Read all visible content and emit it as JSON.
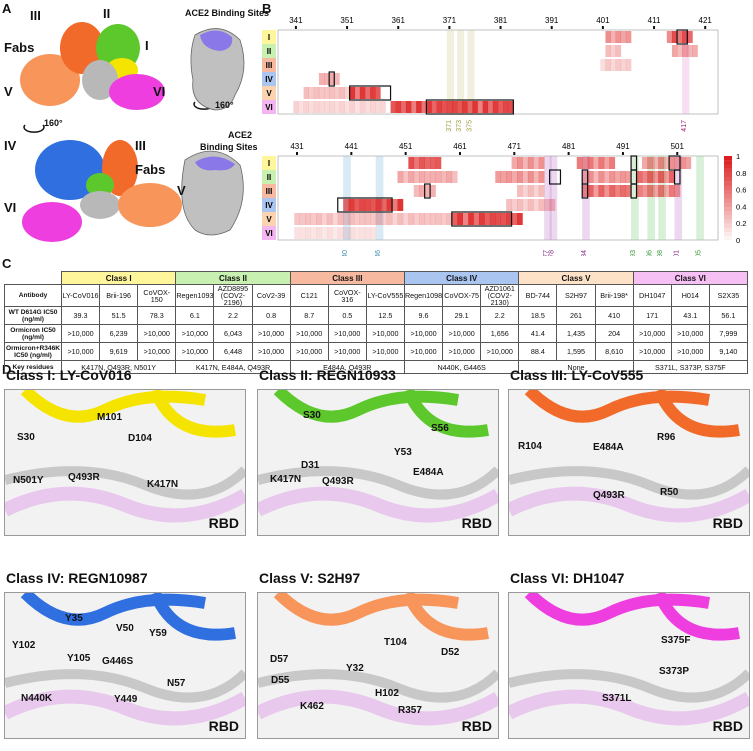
{
  "panel_labels": {
    "a": "A",
    "b": "B",
    "c": "C",
    "d": "D"
  },
  "panel_a": {
    "fab_romans": [
      "I",
      "II",
      "III",
      "IV",
      "V",
      "VI"
    ],
    "fabs_label": "Fabs",
    "ace2_label": "ACE2 Binding Sites",
    "ace2_label2": "ACE2",
    "ace2_label3": "Binding Sites",
    "rotation": "160°"
  },
  "panel_b": {
    "top_ticks": [
      "341",
      "351",
      "361",
      "371",
      "381",
      "391",
      "401",
      "411",
      "421"
    ],
    "bottom_ticks": [
      "431",
      "441",
      "451",
      "461",
      "471",
      "481",
      "491",
      "501"
    ],
    "classes": [
      "I",
      "II",
      "III",
      "IV",
      "V",
      "VI"
    ],
    "class_colors": [
      "#fff59a",
      "#c8f0b0",
      "#f7b9a0",
      "#a9c5f0",
      "#fbd3b0",
      "#f3b6f0"
    ],
    "top_highlights": [
      "371",
      "373",
      "375",
      "417"
    ],
    "bottom_highlights": [
      "440",
      "446",
      "477",
      "478",
      "484",
      "493",
      "496",
      "498",
      "501",
      "505"
    ],
    "colorbar": [
      "1",
      "0.8",
      "0.6",
      "0.4",
      "0.2",
      "0"
    ]
  },
  "panel_c": {
    "class_headers": [
      "Class I",
      "Class II",
      "Class III",
      "Class IV",
      "Class V",
      "Class VI"
    ],
    "class_header_colors": [
      "#fff59a",
      "#c8f0b0",
      "#f7b9a0",
      "#a9c5f0",
      "#fde2c8",
      "#f7c0f5"
    ],
    "row_labels": [
      "Antibody",
      "WT D614G IC50 (ng/ml)",
      "Ormicron IC50 (ng/ml)",
      "Ormicron+R346K IC50 (ng/ml)",
      "Key residues"
    ],
    "antibodies": [
      "LY-CoV016",
      "Brii-196",
      "CoVOX-150",
      "Regen10933",
      "AZD8895 (COV2-2196)",
      "CoV2-39",
      "C121",
      "CoVOX-316",
      "LY-CoV555",
      "Regen10987",
      "CoVOX-75",
      "AZD1061 (COV2-2130)",
      "BD-744",
      "S2H97",
      "Brii-198*",
      "DH1047",
      "H014",
      "S2X35"
    ],
    "wt": [
      "39.3",
      "51.5",
      "78.3",
      "6.1",
      "2.2",
      "0.8",
      "8.7",
      "0.5",
      "12.5",
      "9.6",
      "29.1",
      "2.2",
      "18.5",
      "261",
      "410",
      "171",
      "43.1",
      "56.1"
    ],
    "omicron": [
      ">10,000",
      "6,239",
      ">10,000",
      ">10,000",
      "6,043",
      ">10,000",
      ">10,000",
      ">10,000",
      ">10,000",
      ">10,000",
      ">10,000",
      "1,656",
      "41.4",
      "1,435",
      "204",
      ">10,000",
      ">10,000",
      "7,999"
    ],
    "omicron_r346k": [
      ">10,000",
      "9,619",
      ">10,000",
      ">10,000",
      "6,448",
      ">10,000",
      ">10,000",
      ">10,000",
      ">10,000",
      ">10,000",
      ">10,000",
      ">10,000",
      "88.4",
      "1,595",
      "8,610",
      ">10,000",
      ">10,000",
      "9,140"
    ],
    "key_residues": [
      "K417N, Q493R, N501Y",
      "K417N, E484A, Q493R",
      "E484A, Q493R",
      "N440K, G446S",
      "None",
      "S371L, S373P, S375F"
    ]
  },
  "panel_d": [
    {
      "title": "Class I: LY-CoV016",
      "labels": [
        "S30",
        "M101",
        "D104",
        "N501Y",
        "Q493R",
        "K417N"
      ],
      "rbd": "RBD"
    },
    {
      "title": "Class II: REGN10933",
      "labels": [
        "S30",
        "D31",
        "Y53",
        "S56",
        "K417N",
        "Q493R",
        "E484A"
      ],
      "rbd": "RBD"
    },
    {
      "title": "Class III: LY-CoV555",
      "labels": [
        "E484A",
        "R96",
        "R104",
        "Q493R",
        "R50"
      ],
      "rbd": "RBD"
    },
    {
      "title": "Class IV: REGN10987",
      "labels": [
        "Y35",
        "V50",
        "Y59",
        "Y102",
        "Y105",
        "G446S",
        "N57",
        "N440K",
        "Y449"
      ],
      "rbd": "RBD"
    },
    {
      "title": "Class V: S2H97",
      "labels": [
        "T104",
        "D57",
        "D52",
        "Y32",
        "D55",
        "H102",
        "K462",
        "R357"
      ],
      "rbd": "RBD"
    },
    {
      "title": "Class VI: DH1047",
      "labels": [
        "S375F",
        "S373P",
        "S371L"
      ],
      "rbd": "RBD"
    }
  ],
  "colors": {
    "fab1": "#f5e400",
    "fab2": "#5cc82c",
    "fab3": "#f26a2a",
    "fab4": "#2f6fe0",
    "fab5": "#f7955a",
    "fab6": "#ee3ee0",
    "rbd": "#b8b8b8",
    "ace2": "#8a78e8"
  }
}
